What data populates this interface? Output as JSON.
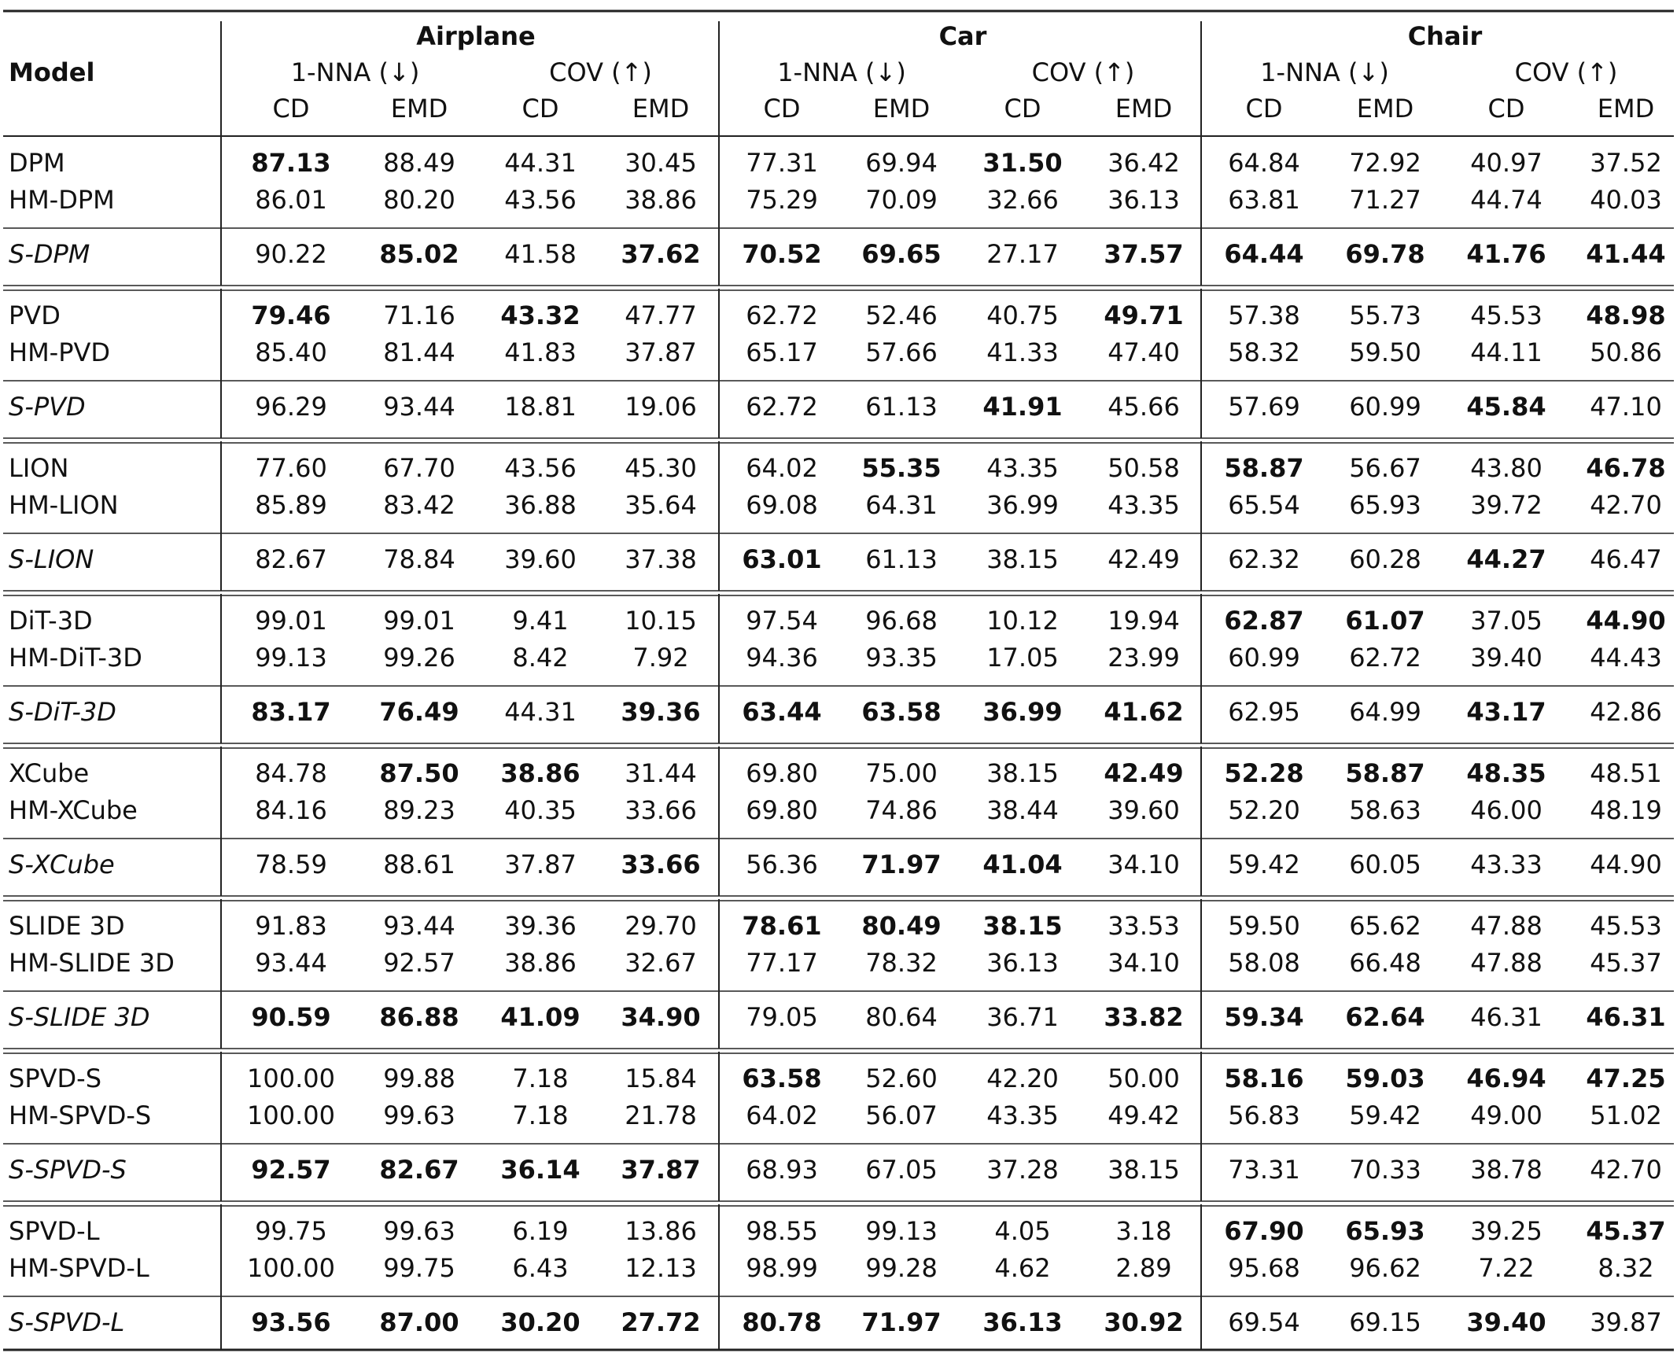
{
  "header": {
    "model": "Model",
    "datasets": [
      "Airplane",
      "Car",
      "Chair"
    ],
    "metrics": [
      "1-NNA (↓)",
      "COV (↑)"
    ],
    "sub": [
      "CD",
      "EMD"
    ]
  },
  "groups": [
    {
      "rows": [
        {
          "model": "DPM",
          "cells": [
            {
              "text": "87.13",
              "bold": true
            },
            "88.49",
            {
              "text": "44.31",
              "color": "#e8312f"
            },
            "30.45",
            "77.31",
            "69.94",
            {
              "text": "31.50",
              "bold": true
            },
            "36.42",
            "64.84",
            "72.92",
            "40.97",
            "37.52"
          ]
        },
        {
          "model": "HM-DPM",
          "cells": [
            "86.01",
            "80.20",
            "43.56",
            "38.86",
            "75.29",
            "70.09",
            "32.66",
            "36.13",
            "63.81",
            "71.27",
            "44.74",
            "40.03"
          ]
        }
      ],
      "ours": {
        "model": "S-DPM",
        "cells": [
          "90.22",
          {
            "text": "85.02",
            "bold": true
          },
          "41.58",
          {
            "text": "37.62",
            "bold": true
          },
          {
            "text": "70.52",
            "bold": true
          },
          {
            "text": "69.65",
            "bold": true
          },
          "27.17",
          {
            "text": "37.57",
            "bold": true
          },
          {
            "text": "64.44",
            "bold": true
          },
          {
            "text": "69.78",
            "bold": true
          },
          {
            "text": "41.76",
            "bold": true
          },
          {
            "text": "41.44",
            "bold": true
          }
        ]
      }
    },
    {
      "rows": [
        {
          "model": "PVD",
          "cells": [
            {
              "text": "79.46",
              "bold": true
            },
            {
              "text": "71.16",
              "color": "#5ee64a"
            },
            {
              "text": "43.32",
              "bold": true
            },
            {
              "text": "47.77",
              "color": "#e8312f"
            },
            {
              "text": "62.72",
              "color": "#5ee64a"
            },
            {
              "text": "52.46",
              "color": "#e8312f"
            },
            "40.75",
            {
              "text": "49.71",
              "bold": true
            },
            {
              "text": "57.38",
              "color": "#5ee64a"
            },
            {
              "text": "55.73",
              "color": "#e8312f"
            },
            "45.53",
            {
              "text": "48.98",
              "bold": true
            }
          ]
        },
        {
          "model": "HM-PVD",
          "cells": [
            "85.40",
            "81.44",
            "41.83",
            "37.87",
            "65.17",
            "57.66",
            "41.33",
            "47.40",
            "58.32",
            "59.50",
            "44.11",
            "50.86"
          ]
        }
      ],
      "ours": {
        "model": "S-PVD",
        "cells": [
          "96.29",
          "93.44",
          "18.81",
          "19.06",
          {
            "text": "62.72",
            "color": "#5ee64a"
          },
          "61.13",
          {
            "text": "41.91",
            "bold": true
          },
          "45.66",
          "57.69",
          "60.99",
          {
            "text": "45.84",
            "bold": true
          },
          "47.10"
        ]
      }
    },
    {
      "rows": [
        {
          "model": "LION",
          "cells": [
            {
              "text": "77.60",
              "color": "#e8312f"
            },
            {
              "text": "67.70",
              "color": "#e8312f"
            },
            {
              "text": "43.56",
              "color": "#5ee64a"
            },
            {
              "text": "45.30",
              "color": "#5ee64a"
            },
            "64.02",
            {
              "text": "55.35",
              "bold": true
            },
            {
              "text": "43.35",
              "color": "#e8312f"
            },
            {
              "text": "50.58",
              "color": "#e8312f"
            },
            {
              "text": "58.87",
              "bold": true
            },
            {
              "text": "56.67",
              "color": "#5ee64a"
            },
            "43.80",
            {
              "text": "46.78",
              "bold": true
            }
          ]
        },
        {
          "model": "HM-LION",
          "cells": [
            "85.89",
            "83.42",
            "36.88",
            "35.64",
            "69.08",
            "64.31",
            "36.99",
            "43.35",
            "65.54",
            "65.93",
            "39.72",
            "42.70"
          ]
        }
      ],
      "ours": {
        "model": "S-LION",
        "cells": [
          "82.67",
          "78.84",
          "39.60",
          "37.38",
          {
            "text": "63.01",
            "bold": true
          },
          "61.13",
          "38.15",
          "42.49",
          "62.32",
          "60.28",
          {
            "text": "44.27",
            "bold": true
          },
          "46.47"
        ]
      }
    },
    {
      "rows": [
        {
          "model": "DiT-3D",
          "cells": [
            "99.01",
            "99.01",
            "9.41",
            "10.15",
            "97.54",
            "96.68",
            "10.12",
            "19.94",
            {
              "text": "62.87",
              "bold": true
            },
            {
              "text": "61.07",
              "bold": true
            },
            "37.05",
            {
              "text": "44.90",
              "bold": true
            }
          ]
        },
        {
          "model": "HM-DiT-3D",
          "cells": [
            "99.13",
            "99.26",
            "8.42",
            "7.92",
            "94.36",
            "93.35",
            "17.05",
            "23.99",
            "60.99",
            "62.72",
            "39.40",
            "44.43"
          ]
        }
      ],
      "ours": {
        "model": "S-DiT-3D",
        "cells": [
          {
            "text": "83.17",
            "bold": true
          },
          {
            "text": "76.49",
            "bold": true
          },
          {
            "text": "44.31",
            "color": "#e8312f"
          },
          {
            "text": "39.36",
            "bold": true
          },
          {
            "text": "63.44",
            "bold": true
          },
          {
            "text": "63.58",
            "bold": true
          },
          {
            "text": "36.99",
            "bold": true
          },
          {
            "text": "41.62",
            "bold": true
          },
          "62.95",
          "64.99",
          {
            "text": "43.17",
            "bold": true
          },
          "42.86"
        ]
      }
    },
    {
      "rows": [
        {
          "model": "XCube",
          "cells": [
            "84.78",
            {
              "text": "87.50",
              "bold": true
            },
            {
              "text": "38.86",
              "bold": true
            },
            "31.44",
            "69.80",
            "75.00",
            "38.15",
            {
              "text": "42.49",
              "bold": true
            },
            {
              "text": "52.28",
              "bold": true
            },
            {
              "text": "58.87",
              "bold": true
            },
            {
              "text": "48.35",
              "bold": true
            },
            {
              "text": "48.51",
              "color": "#5ee64a"
            }
          ]
        },
        {
          "model": "HM-XCube",
          "cells": [
            "84.16",
            "89.23",
            "40.35",
            "33.66",
            "69.80",
            "74.86",
            "38.44",
            "39.60",
            {
              "text": "52.20",
              "color": "#e8312f"
            },
            "58.63",
            "46.00",
            "48.19"
          ]
        }
      ],
      "ours": {
        "model": "S-XCube",
        "cells": [
          {
            "text": "78.59",
            "color": "#5ee64a"
          },
          "88.61",
          "37.87",
          {
            "text": "33.66",
            "bold": true
          },
          {
            "text": "56.36",
            "color": "#e8312f"
          },
          {
            "text": "71.97",
            "bold": true
          },
          {
            "text": "41.04",
            "bold": true
          },
          "34.10",
          "59.42",
          "60.05",
          "43.33",
          "44.90"
        ]
      }
    },
    {
      "rows": [
        {
          "model": "SLIDE 3D",
          "cells": [
            "91.83",
            "93.44",
            "39.36",
            "29.70",
            {
              "text": "78.61",
              "bold": true
            },
            {
              "text": "80.49",
              "bold": true
            },
            {
              "text": "38.15",
              "bold": true
            },
            "33.53",
            "59.50",
            "65.62",
            {
              "text": "47.88",
              "color": "#5ee64a"
            },
            "45.53"
          ]
        },
        {
          "model": "HM-SLIDE 3D",
          "cells": [
            "93.44",
            "92.57",
            "38.86",
            "32.67",
            "77.17",
            "78.32",
            "36.13",
            "34.10",
            "58.08",
            "66.48",
            "47.88",
            "45.37"
          ]
        }
      ],
      "ours": {
        "model": "S-SLIDE 3D",
        "cells": [
          {
            "text": "90.59",
            "bold": true
          },
          {
            "text": "86.88",
            "bold": true
          },
          {
            "text": "41.09",
            "bold": true
          },
          {
            "text": "34.90",
            "bold": true
          },
          "79.05",
          "80.64",
          "36.71",
          {
            "text": "33.82",
            "bold": true
          },
          {
            "text": "59.34",
            "bold": true
          },
          {
            "text": "62.64",
            "bold": true
          },
          "46.31",
          {
            "text": "46.31",
            "bold": true
          }
        ]
      }
    },
    {
      "rows": [
        {
          "model": "SPVD-S",
          "cells": [
            "100.00",
            "99.88",
            "7.18",
            "15.84",
            {
              "text": "63.58",
              "bold": true
            },
            {
              "text": "52.60",
              "color": "#5ee64a"
            },
            {
              "text": "42.20",
              "color": "#5ee64a"
            },
            {
              "text": "50.00",
              "color": "#5ee64a"
            },
            {
              "text": "58.16",
              "bold": true
            },
            {
              "text": "59.03",
              "bold": true
            },
            {
              "text": "46.94",
              "bold": true
            },
            {
              "text": "47.25",
              "bold": true
            }
          ]
        },
        {
          "model": "HM-SPVD-S",
          "cells": [
            "100.00",
            "99.63",
            "7.18",
            "21.78",
            "64.02",
            "56.07",
            {
              "text": "43.35",
              "color": "#e8312f"
            },
            "49.42",
            "56.83",
            "59.42",
            {
              "text": "49.00",
              "color": "#e8312f"
            },
            {
              "text": "51.02",
              "color": "#e8312f"
            }
          ]
        }
      ],
      "ours": {
        "model": "S-SPVD-S",
        "cells": [
          {
            "text": "92.57",
            "bold": true
          },
          {
            "text": "82.67",
            "bold": true
          },
          {
            "text": "36.14",
            "bold": true
          },
          {
            "text": "37.87",
            "bold": true
          },
          "68.93",
          "67.05",
          "37.28",
          "38.15",
          "73.31",
          "70.33",
          "38.78",
          "42.70"
        ]
      }
    },
    {
      "rows": [
        {
          "model": "SPVD-L",
          "cells": [
            "99.75",
            "99.63",
            "6.19",
            "13.86",
            "98.55",
            "99.13",
            "4.05",
            "3.18",
            {
              "text": "67.90",
              "bold": true
            },
            {
              "text": "65.93",
              "bold": true
            },
            "39.25",
            {
              "text": "45.37",
              "bold": true
            }
          ]
        },
        {
          "model": "HM-SPVD-L",
          "cells": [
            "100.00",
            "99.75",
            "6.43",
            "12.13",
            "98.99",
            "99.28",
            "4.62",
            "2.89",
            "95.68",
            "96.62",
            "7.22",
            "8.32"
          ]
        }
      ],
      "ours": {
        "model": "S-SPVD-L",
        "cells": [
          {
            "text": "93.56",
            "bold": true
          },
          {
            "text": "87.00",
            "bold": true
          },
          {
            "text": "30.20",
            "bold": true
          },
          {
            "text": "27.72",
            "bold": true
          },
          {
            "text": "80.78",
            "bold": true
          },
          {
            "text": "71.97",
            "bold": true
          },
          {
            "text": "36.13",
            "bold": true
          },
          {
            "text": "30.92",
            "bold": true
          },
          "69.54",
          "69.15",
          {
            "text": "39.40",
            "bold": true
          },
          "39.87"
        ]
      }
    }
  ]
}
